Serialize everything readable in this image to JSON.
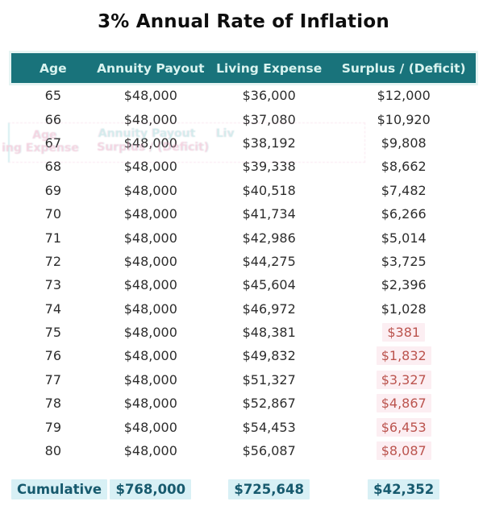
{
  "title": "3% Annual Rate of Inflation",
  "chart_data": {
    "type": "table",
    "columns": [
      "Age",
      "Annuity Payout",
      "Living Expense",
      "Surplus / (Deficit)"
    ],
    "rows": [
      {
        "age": "65",
        "payout": "$48,000",
        "expense": "$36,000",
        "surplus": "$12,000",
        "deficit": false
      },
      {
        "age": "66",
        "payout": "$48,000",
        "expense": "$37,080",
        "surplus": "$10,920",
        "deficit": false
      },
      {
        "age": "67",
        "payout": "$48,000",
        "expense": "$38,192",
        "surplus": "$9,808",
        "deficit": false
      },
      {
        "age": "68",
        "payout": "$48,000",
        "expense": "$39,338",
        "surplus": "$8,662",
        "deficit": false
      },
      {
        "age": "69",
        "payout": "$48,000",
        "expense": "$40,518",
        "surplus": "$7,482",
        "deficit": false
      },
      {
        "age": "70",
        "payout": "$48,000",
        "expense": "$41,734",
        "surplus": "$6,266",
        "deficit": false
      },
      {
        "age": "71",
        "payout": "$48,000",
        "expense": "$42,986",
        "surplus": "$5,014",
        "deficit": false
      },
      {
        "age": "72",
        "payout": "$48,000",
        "expense": "$44,275",
        "surplus": "$3,725",
        "deficit": false
      },
      {
        "age": "73",
        "payout": "$48,000",
        "expense": "$45,604",
        "surplus": "$2,396",
        "deficit": false
      },
      {
        "age": "74",
        "payout": "$48,000",
        "expense": "$46,972",
        "surplus": "$1,028",
        "deficit": false
      },
      {
        "age": "75",
        "payout": "$48,000",
        "expense": "$48,381",
        "surplus": "$381",
        "deficit": true
      },
      {
        "age": "76",
        "payout": "$48,000",
        "expense": "$49,832",
        "surplus": "$1,832",
        "deficit": true
      },
      {
        "age": "77",
        "payout": "$48,000",
        "expense": "$51,327",
        "surplus": "$3,327",
        "deficit": true
      },
      {
        "age": "78",
        "payout": "$48,000",
        "expense": "$52,867",
        "surplus": "$4,867",
        "deficit": true
      },
      {
        "age": "79",
        "payout": "$48,000",
        "expense": "$54,453",
        "surplus": "$6,453",
        "deficit": true
      },
      {
        "age": "80",
        "payout": "$48,000",
        "expense": "$56,087",
        "surplus": "$8,087",
        "deficit": true
      }
    ],
    "cumulative": {
      "label": "Cumulative",
      "payout": "$768,000",
      "expense": "$725,648",
      "surplus": "$42,352"
    }
  },
  "colors": {
    "header-bg": "#19737b",
    "header-text": "#d9f3ef",
    "deficit-text": "#bb544e",
    "deficit-bg": "#fceef2",
    "cumulative-text": "#175a6e",
    "cumulative-bg": "#d8f0f5"
  },
  "artifact": {
    "ghost_labels": {
      "age": "Age",
      "annuity_payout": "Annuity Payout",
      "living_cut": "Liv",
      "expense_cut": "ing Expense",
      "surplus": "Surplus / (Deficit)"
    }
  }
}
